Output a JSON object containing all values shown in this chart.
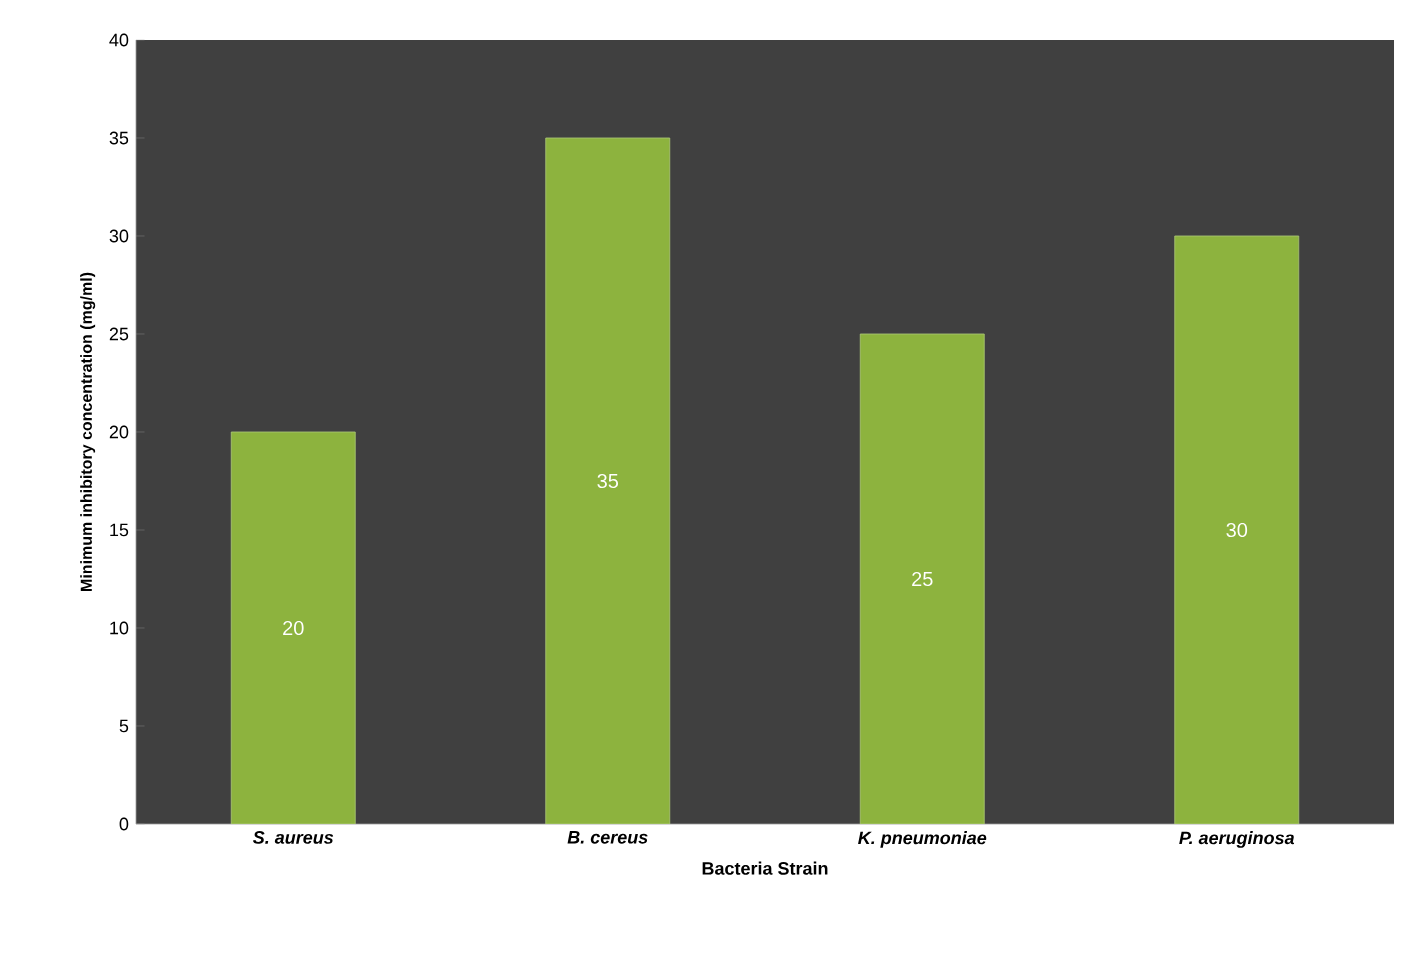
{
  "chart_data": {
    "type": "bar",
    "xlabel": "Bacteria Strain",
    "ylabel": "Minimum inhibitory concentration (mg/ml)",
    "categories": [
      "S. aureus",
      "B. cereus",
      "K. pneumoniae",
      "P. aeruginosa"
    ],
    "values": [
      20,
      35,
      25,
      30
    ],
    "value_labels": [
      "20",
      "35",
      "25",
      "30"
    ],
    "color": "#8db33e",
    "ylim": [
      0,
      40
    ],
    "yticks": [
      0,
      5,
      10,
      15,
      20,
      25,
      30,
      35,
      40
    ],
    "grid": false
  }
}
